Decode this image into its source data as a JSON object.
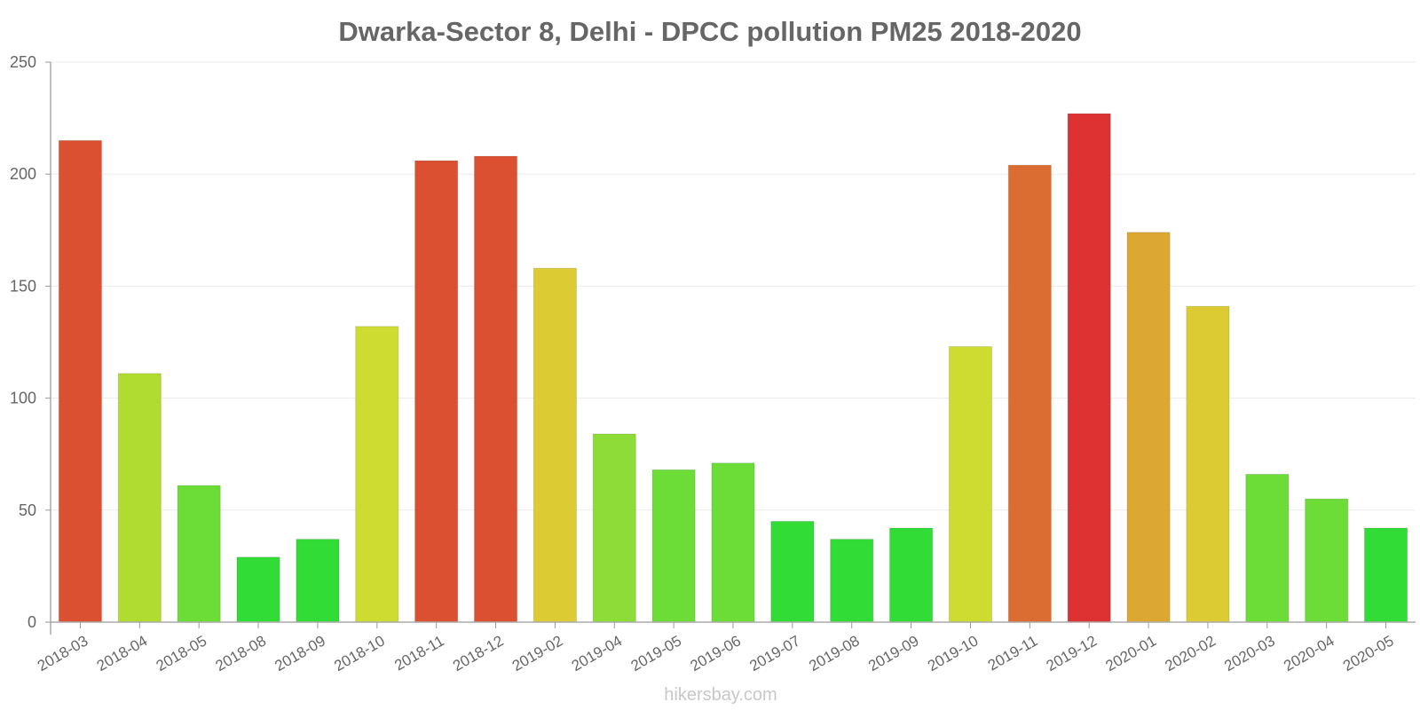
{
  "chart_data": {
    "type": "bar",
    "title": "Dwarka-Sector 8, Delhi - DPCC  pollution PM25 2018-2020",
    "xlabel": "",
    "ylabel": "",
    "ylim": [
      0,
      250
    ],
    "yticks": [
      0,
      50,
      100,
      150,
      200,
      250
    ],
    "grid": true,
    "categories": [
      "2018-03",
      "2018-04",
      "2018-05",
      "2018-08",
      "2018-09",
      "2018-10",
      "2018-11",
      "2018-12",
      "2019-02",
      "2019-04",
      "2019-05",
      "2019-06",
      "2019-07",
      "2019-08",
      "2019-09",
      "2019-10",
      "2019-11",
      "2019-12",
      "2020-01",
      "2020-02",
      "2020-03",
      "2020-04",
      "2020-05"
    ],
    "values": [
      215,
      111,
      61,
      29,
      37,
      132,
      206,
      208,
      158,
      84,
      68,
      71,
      45,
      37,
      42,
      123,
      204,
      227,
      174,
      141,
      66,
      55,
      42
    ],
    "colors": [
      "#dc5032",
      "#b0dc32",
      "#6cdc37",
      "#32dc37",
      "#32dc37",
      "#cedc32",
      "#dc5032",
      "#dc5032",
      "#dccb32",
      "#8ddc37",
      "#6cdc37",
      "#6cdc37",
      "#32dc37",
      "#32dc37",
      "#32dc37",
      "#cedc32",
      "#dc6d32",
      "#dc3232",
      "#dca832",
      "#dccb32",
      "#6cdc37",
      "#6cdc37",
      "#32dc37"
    ]
  },
  "watermark": "hikersbay.com"
}
